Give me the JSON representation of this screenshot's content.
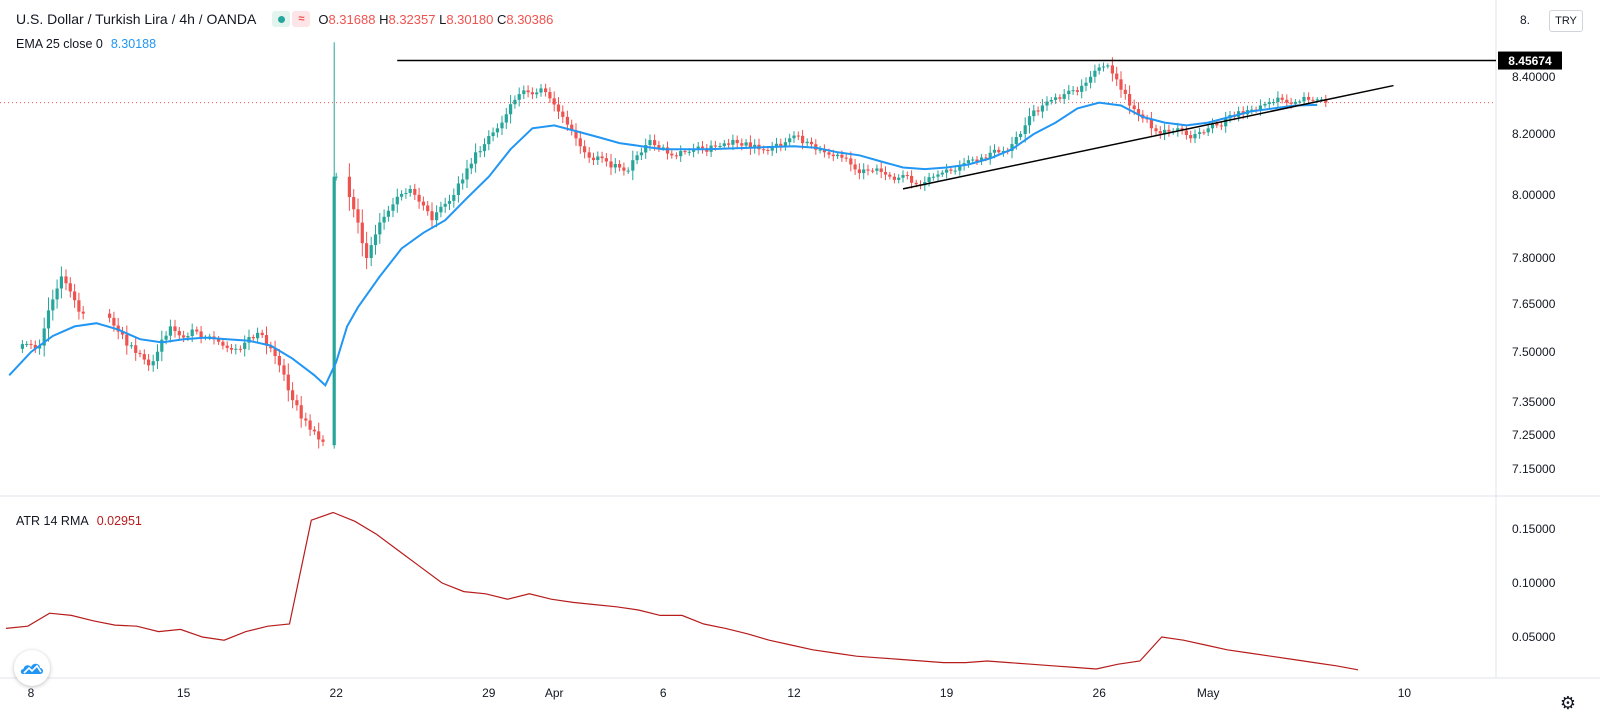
{
  "header": {
    "symbol_title": "U.S. Dollar / Turkish Lira",
    "interval": "4h",
    "exchange": "OANDA",
    "ohlc": {
      "o_label": "O",
      "o": "8.31688",
      "h_label": "H",
      "h": "8.32357",
      "l_label": "L",
      "l": "8.30180",
      "c_label": "C",
      "c": "8.30386"
    },
    "ema_label": "EMA 25 close 0",
    "ema_value": "8.30188",
    "atr_label": "ATR 14 RMA",
    "atr_value": "0.02951",
    "currency": "TRY",
    "last_price_label": "8.45674",
    "top_tick_partial": "8."
  },
  "colors": {
    "up": "#26a69a",
    "down": "#ef5350",
    "ema": "#2196f3",
    "atr": "#b71c1c",
    "trend": "#000000"
  },
  "icons": {
    "logo": "tradingview-cloud-icon",
    "settings": "gear-icon"
  },
  "chart_data": [
    {
      "type": "candlestick",
      "title": "U.S. Dollar / Turkish Lira · 4h · OANDA",
      "y_ticks": [
        "8.40000",
        "8.20000",
        "8.00000",
        "7.80000",
        "7.65000",
        "7.50000",
        "7.35000",
        "7.25000",
        "7.15000"
      ],
      "y_tick_values": [
        8.4,
        8.2,
        8.0,
        7.8,
        7.65,
        7.5,
        7.35,
        7.25,
        7.15
      ],
      "x_ticks": [
        "8",
        "15",
        "22",
        "29",
        "Apr",
        "6",
        "12",
        "19",
        "26",
        "May",
        "10"
      ],
      "resistance_level": 8.45674,
      "key_points": [
        {
          "date": "Mar 8",
          "close": 7.52
        },
        {
          "date": "Mar 9",
          "close": 7.74
        },
        {
          "date": "Mar 10",
          "close": 7.62
        },
        {
          "date": "Mar 12",
          "close": 7.52
        },
        {
          "date": "Mar 13",
          "close": 7.46
        },
        {
          "date": "Mar 14",
          "close": 7.58
        },
        {
          "date": "Mar 15",
          "close": 7.57
        },
        {
          "date": "Mar 16",
          "close": 7.54
        },
        {
          "date": "Mar 17",
          "close": 7.51
        },
        {
          "date": "Mar 18",
          "close": 7.56
        },
        {
          "date": "Mar 19",
          "close": 7.46
        },
        {
          "date": "Mar 20",
          "close": 7.3
        },
        {
          "date": "Mar 21",
          "close": 7.23
        },
        {
          "date": "Mar 22",
          "close": 8.06
        },
        {
          "date": "Mar 23",
          "close": 7.8
        },
        {
          "date": "Mar 24",
          "close": 7.95
        },
        {
          "date": "Mar 25",
          "close": 8.02
        },
        {
          "date": "Mar 26",
          "close": 7.92
        },
        {
          "date": "Mar 27",
          "close": 8.0
        },
        {
          "date": "Mar 28",
          "close": 8.14
        },
        {
          "date": "Mar 29",
          "close": 8.22
        },
        {
          "date": "Mar 30",
          "close": 8.34
        },
        {
          "date": "Mar 31",
          "close": 8.36
        },
        {
          "date": "Apr 1",
          "close": 8.26
        },
        {
          "date": "Apr 2",
          "close": 8.14
        },
        {
          "date": "Apr 3",
          "close": 8.11
        },
        {
          "date": "Apr 4",
          "close": 8.08
        },
        {
          "date": "Apr 5",
          "close": 8.18
        },
        {
          "date": "Apr 6",
          "close": 8.13
        },
        {
          "date": "Apr 7",
          "close": 8.15
        },
        {
          "date": "Apr 8",
          "close": 8.16
        },
        {
          "date": "Apr 9",
          "close": 8.17
        },
        {
          "date": "Apr 10",
          "close": 8.15
        },
        {
          "date": "Apr 11",
          "close": 8.16
        },
        {
          "date": "Apr 12",
          "close": 8.17
        },
        {
          "date": "Apr 13",
          "close": 8.14
        },
        {
          "date": "Apr 14",
          "close": 8.12
        },
        {
          "date": "Apr 15",
          "close": 8.08
        },
        {
          "date": "Apr 16",
          "close": 8.06
        },
        {
          "date": "Apr 17",
          "close": 8.04
        },
        {
          "date": "Apr 18",
          "close": 8.06
        },
        {
          "date": "Apr 19",
          "close": 8.08
        },
        {
          "date": "Apr 20",
          "close": 8.11
        },
        {
          "date": "Apr 21",
          "close": 8.14
        },
        {
          "date": "Apr 22",
          "close": 8.2
        },
        {
          "date": "Apr 23",
          "close": 8.3
        },
        {
          "date": "Apr 24",
          "close": 8.34
        },
        {
          "date": "Apr 25",
          "close": 8.38
        },
        {
          "date": "Apr 26",
          "close": 8.44
        },
        {
          "date": "Apr 27",
          "close": 8.3
        },
        {
          "date": "Apr 28",
          "close": 8.22
        },
        {
          "date": "Apr 29",
          "close": 8.21
        },
        {
          "date": "Apr 30",
          "close": 8.2
        },
        {
          "date": "May 1",
          "close": 8.23
        },
        {
          "date": "May 2",
          "close": 8.28
        },
        {
          "date": "May 3",
          "close": 8.3
        },
        {
          "date": "May 4",
          "close": 8.32
        },
        {
          "date": "May 5",
          "close": 8.33
        },
        {
          "date": "May 6",
          "close": 8.31
        }
      ],
      "ema": [
        {
          "date": "Mar 7",
          "value": 7.43
        },
        {
          "date": "Mar 8",
          "value": 7.5
        },
        {
          "date": "Mar 9",
          "value": 7.55
        },
        {
          "date": "Mar 10",
          "value": 7.58
        },
        {
          "date": "Mar 11",
          "value": 7.59
        },
        {
          "date": "Mar 12",
          "value": 7.57
        },
        {
          "date": "Mar 13",
          "value": 7.54
        },
        {
          "date": "Mar 14",
          "value": 7.53
        },
        {
          "date": "Mar 15",
          "value": 7.54
        },
        {
          "date": "Mar 16",
          "value": 7.545
        },
        {
          "date": "Mar 17",
          "value": 7.54
        },
        {
          "date": "Mar 18",
          "value": 7.535
        },
        {
          "date": "Mar 19",
          "value": 7.52
        },
        {
          "date": "Mar 20",
          "value": 7.48
        },
        {
          "date": "Mar 21",
          "value": 7.43
        },
        {
          "date": "Mar 21b",
          "value": 7.4
        },
        {
          "date": "Mar 22",
          "value": 7.47
        },
        {
          "date": "Mar 22b",
          "value": 7.58
        },
        {
          "date": "Mar 23",
          "value": 7.64
        },
        {
          "date": "Mar 24",
          "value": 7.74
        },
        {
          "date": "Mar 25",
          "value": 7.83
        },
        {
          "date": "Mar 26",
          "value": 7.88
        },
        {
          "date": "Mar 27",
          "value": 7.92
        },
        {
          "date": "Mar 28",
          "value": 7.99
        },
        {
          "date": "Mar 29",
          "value": 8.06
        },
        {
          "date": "Mar 30",
          "value": 8.15
        },
        {
          "date": "Mar 31",
          "value": 8.22
        },
        {
          "date": "Apr 1",
          "value": 8.23
        },
        {
          "date": "Apr 2",
          "value": 8.21
        },
        {
          "date": "Apr 3",
          "value": 8.19
        },
        {
          "date": "Apr 4",
          "value": 8.17
        },
        {
          "date": "Apr 5",
          "value": 8.16
        },
        {
          "date": "Apr 6",
          "value": 8.15
        },
        {
          "date": "Apr 8",
          "value": 8.15
        },
        {
          "date": "Apr 10",
          "value": 8.155
        },
        {
          "date": "Apr 12",
          "value": 8.16
        },
        {
          "date": "Apr 13",
          "value": 8.155
        },
        {
          "date": "Apr 14",
          "value": 8.14
        },
        {
          "date": "Apr 15",
          "value": 8.13
        },
        {
          "date": "Apr 16",
          "value": 8.11
        },
        {
          "date": "Apr 17",
          "value": 8.09
        },
        {
          "date": "Apr 18",
          "value": 8.085
        },
        {
          "date": "Apr 19",
          "value": 8.09
        },
        {
          "date": "Apr 20",
          "value": 8.1
        },
        {
          "date": "Apr 21",
          "value": 8.12
        },
        {
          "date": "Apr 22",
          "value": 8.15
        },
        {
          "date": "Apr 23",
          "value": 8.2
        },
        {
          "date": "Apr 24",
          "value": 8.24
        },
        {
          "date": "Apr 25",
          "value": 8.29
        },
        {
          "date": "Apr 26",
          "value": 8.31
        },
        {
          "date": "Apr 27",
          "value": 8.3
        },
        {
          "date": "Apr 28",
          "value": 8.26
        },
        {
          "date": "Apr 29",
          "value": 8.24
        },
        {
          "date": "Apr 30",
          "value": 8.23
        },
        {
          "date": "May 1",
          "value": 8.24
        },
        {
          "date": "May 2",
          "value": 8.26
        },
        {
          "date": "May 3",
          "value": 8.28
        },
        {
          "date": "May 4",
          "value": 8.29
        },
        {
          "date": "May 5",
          "value": 8.3
        },
        {
          "date": "May 6",
          "value": 8.302
        }
      ],
      "support_trendline": [
        {
          "date": "Apr 17",
          "value": 8.02
        },
        {
          "date": "May 9.5",
          "value": 8.37
        }
      ]
    },
    {
      "type": "line",
      "title": "ATR 14 RMA",
      "y_ticks": [
        "0.15000",
        "0.10000",
        "0.05000"
      ],
      "y_tick_values": [
        0.15,
        0.1,
        0.05
      ],
      "series": [
        {
          "name": "ATR 14 RMA",
          "values": [
            0.058,
            0.06,
            0.072,
            0.07,
            0.065,
            0.061,
            0.06,
            0.055,
            0.057,
            0.05,
            0.048,
            0.055,
            0.06,
            0.062,
            0.158,
            0.165,
            0.157,
            0.145,
            0.13,
            0.115,
            0.1,
            0.092,
            0.09,
            0.085,
            0.09,
            0.085,
            0.082,
            0.08,
            0.078,
            0.075,
            0.07,
            0.07,
            0.062,
            0.058,
            0.053,
            0.048,
            0.045,
            0.042,
            0.04,
            0.038,
            0.037,
            0.036,
            0.035,
            0.034,
            0.034,
            0.035,
            0.034,
            0.033,
            0.032,
            0.031,
            0.03,
            0.033,
            0.035,
            0.05,
            0.048,
            0.045,
            0.042,
            0.04,
            0.038,
            0.036,
            0.034,
            0.032,
            0.0295
          ]
        }
      ]
    }
  ]
}
